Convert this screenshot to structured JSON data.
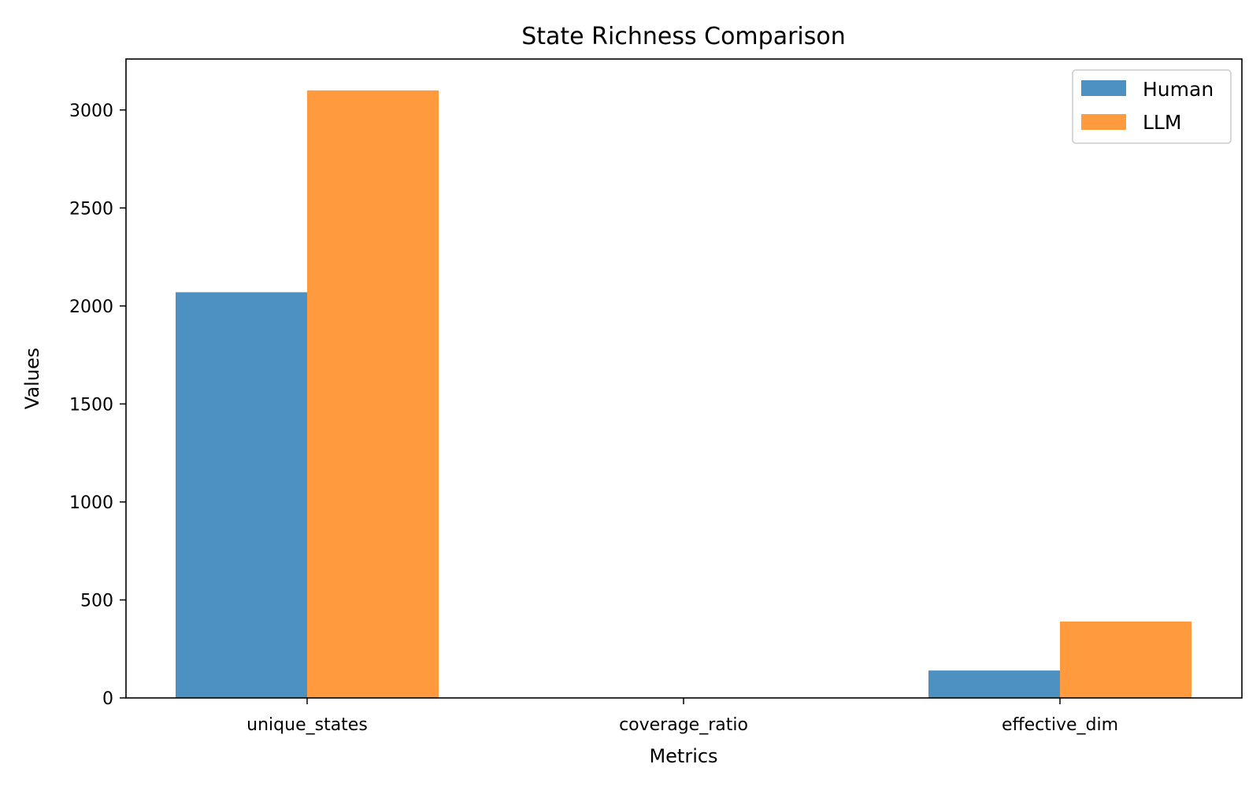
{
  "chart_data": {
    "type": "bar",
    "title": "State Richness Comparison",
    "xlabel": "Metrics",
    "ylabel": "Values",
    "categories": [
      "unique_states",
      "coverage_ratio",
      "effective_dim"
    ],
    "series": [
      {
        "name": "Human",
        "values": [
          2070,
          0.95,
          140
        ],
        "color": "#4c91c2"
      },
      {
        "name": "LLM",
        "values": [
          3100,
          0.98,
          390
        ],
        "color": "#ff9a3f"
      }
    ],
    "ylim": [
      0,
      3260
    ],
    "yticks": [
      0,
      500,
      1000,
      1500,
      2000,
      2500,
      3000
    ],
    "grid": false,
    "legend_position": "top-right"
  }
}
